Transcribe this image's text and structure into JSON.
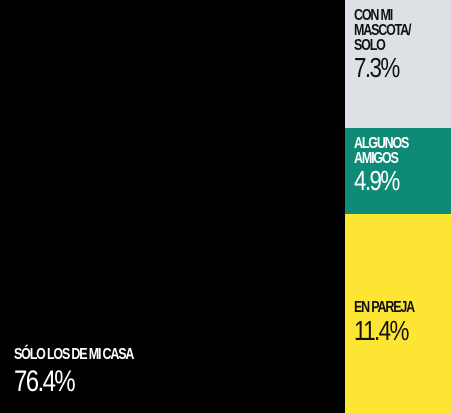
{
  "chart_data": {
    "type": "treemap",
    "unit": "%",
    "segments": [
      {
        "label": "SÓLO LOS DE MI CASA",
        "value": 76.4,
        "display": "76.4%",
        "color": "#000000",
        "text_color": "#ffffff"
      },
      {
        "label": "CON MI MASCOTA/ SOLO",
        "value": 7.3,
        "display": "7.3%",
        "color": "#dde1e5",
        "text_color": "#111111"
      },
      {
        "label": "ALGUNOS AMIGOS",
        "value": 4.9,
        "display": "4.9%",
        "color": "#0f8a77",
        "text_color": "#ffffff"
      },
      {
        "label": "EN PAREJA",
        "value": 11.4,
        "display": "11.4%",
        "color": "#fde533",
        "text_color": "#111111"
      }
    ]
  }
}
